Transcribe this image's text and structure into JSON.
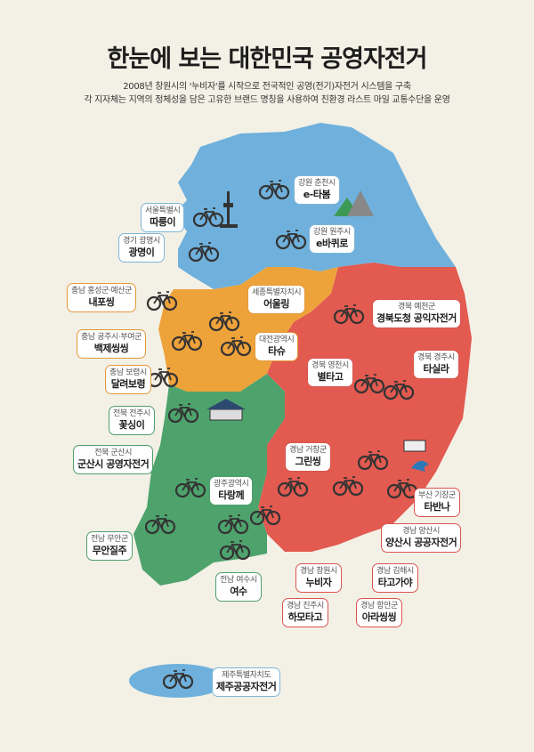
{
  "title": "한눈에 보는 대한민국 공영자전거",
  "subtitle": [
    "2008년 창원시의 '누비자'를 시작으로 전국적인 공영(전기)자전거 시스템을 구축",
    "각 지자체는 지역의 정체성을 담은 고유한 브랜드 명칭을 사용하여 친환경 라스트 마일 교통수단을 운영"
  ],
  "colors": {
    "capital_gangwon": "#6fb1dc",
    "chungcheong": "#eea23a",
    "gyeongsang": "#e25a50",
    "jeolla": "#4ea36d",
    "background": "#f3f0e6"
  },
  "icons": [
    "bicycle-icon",
    "namsan-tower-icon",
    "mountain-icon",
    "gate-icon",
    "wave-icon",
    "temple-icon"
  ],
  "labels": [
    {
      "region": "서울특별시",
      "brand": "따릉이"
    },
    {
      "region": "경기 광명시",
      "brand": "광명이"
    },
    {
      "region": "강원 춘천시",
      "brand": "e-타봄"
    },
    {
      "region": "강원 원주시",
      "brand": "e바퀴로"
    },
    {
      "region": "충남 홍성군·예산군",
      "brand": "내포씽"
    },
    {
      "region": "세종특별자치시",
      "brand": "어울링"
    },
    {
      "region": "경북 예천군",
      "brand": "경북도청 공익자전거"
    },
    {
      "region": "충남 공주시·부여군",
      "brand": "백제씽씽"
    },
    {
      "region": "대전광역시",
      "brand": "타슈"
    },
    {
      "region": "경북 영천시",
      "brand": "별타고"
    },
    {
      "region": "경북 경주시",
      "brand": "타실라"
    },
    {
      "region": "충남 보령시",
      "brand": "달려보령"
    },
    {
      "region": "전북 전주시",
      "brand": "꽃싱이"
    },
    {
      "region": "전북 군산시",
      "brand": "군산시 공영자전거"
    },
    {
      "region": "경남 거창군",
      "brand": "그린씽"
    },
    {
      "region": "광주광역시",
      "brand": "타랑께"
    },
    {
      "region": "부산 기장군",
      "brand": "타반나"
    },
    {
      "region": "경남 양산시",
      "brand": "양산시 공공자전거"
    },
    {
      "region": "전남 무안군",
      "brand": "무안질주"
    },
    {
      "region": "경남 창원시",
      "brand": "누비자"
    },
    {
      "region": "경남 김해시",
      "brand": "타고가야"
    },
    {
      "region": "전남 여수시",
      "brand": "여수"
    },
    {
      "region": "경남 진주시",
      "brand": "하모타고"
    },
    {
      "region": "경남 함안군",
      "brand": "아라씽씽"
    },
    {
      "region": "제주특별자치도",
      "brand": "제주공공자전거"
    }
  ]
}
